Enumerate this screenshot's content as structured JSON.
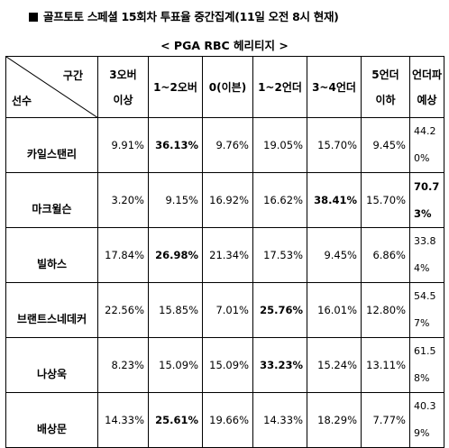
{
  "title": "골프토토 스페셜 15회차 투표율 중간집계(11일 오전 8시 현재)",
  "subtitle": "< PGA RBC 헤리티지 >",
  "table": {
    "corner_top": "구간",
    "corner_bottom": "선수",
    "headers": [
      {
        "l1": "3오버",
        "l2": "이상"
      },
      {
        "l1": "1~2오버",
        "l2": ""
      },
      {
        "l1": "0(이븐)",
        "l2": ""
      },
      {
        "l1": "1~2언더",
        "l2": ""
      },
      {
        "l1": "3~4언더",
        "l2": ""
      },
      {
        "l1": "5언더",
        "l2": "이하"
      },
      {
        "l1": "언더파",
        "l2": "예상"
      }
    ],
    "rows": [
      {
        "name": "카일스탠리",
        "values": [
          "9.91%",
          "36.13%",
          "9.76%",
          "19.05%",
          "15.70%",
          "9.45%",
          "44.20%"
        ],
        "bold": [
          1
        ]
      },
      {
        "name": "마크윌슨",
        "values": [
          "3.20%",
          "9.15%",
          "16.92%",
          "16.62%",
          "38.41%",
          "15.70%",
          "70.73%"
        ],
        "bold": [
          4,
          6
        ]
      },
      {
        "name": "빌하스",
        "values": [
          "17.84%",
          "26.98%",
          "21.34%",
          "17.53%",
          "9.45%",
          "6.86%",
          "33.84%"
        ],
        "bold": [
          1
        ]
      },
      {
        "name": "브랜트스네데커",
        "values": [
          "22.56%",
          "15.85%",
          "7.01%",
          "25.76%",
          "16.01%",
          "12.80%",
          "54.57%"
        ],
        "bold": [
          3
        ]
      },
      {
        "name": "나상욱",
        "values": [
          "8.23%",
          "15.09%",
          "15.09%",
          "33.23%",
          "15.24%",
          "13.11%",
          "61.58%"
        ],
        "bold": [
          3
        ]
      },
      {
        "name": "배상문",
        "values": [
          "14.33%",
          "25.61%",
          "19.66%",
          "14.33%",
          "18.29%",
          "7.77%",
          "40.39%"
        ],
        "bold": [
          1
        ]
      }
    ]
  }
}
